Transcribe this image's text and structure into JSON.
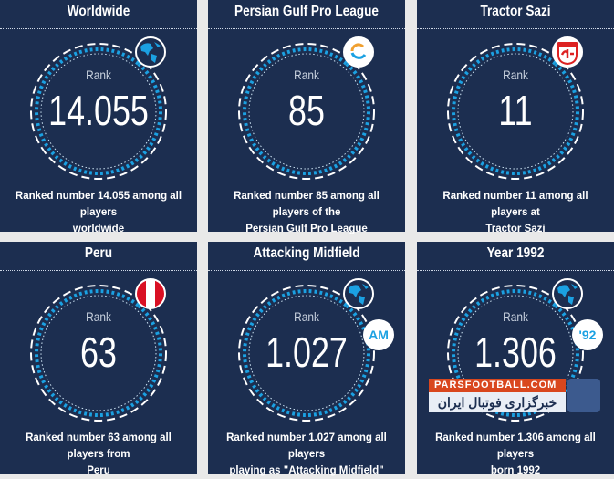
{
  "colors": {
    "card": "#1c2e50",
    "accent": "#1ba1e2",
    "background": "#e9e9e9"
  },
  "cards": [
    {
      "title": "Worldwide",
      "rank_label": "Rank",
      "value": "14.055",
      "desc1": "Ranked number 14.055 among all players",
      "desc2": "worldwide",
      "icon": "globe-icon"
    },
    {
      "title": "Persian Gulf Pro League",
      "rank_label": "Rank",
      "value": "85",
      "desc1": "Ranked number 85 among all players of the",
      "desc2": "Persian Gulf Pro League",
      "icon": "league-logo-icon"
    },
    {
      "title": "Tractor Sazi",
      "rank_label": "Rank",
      "value": "11",
      "desc1": "Ranked number 11 among all players at",
      "desc2": "Tractor Sazi",
      "icon": "club-logo-icon"
    },
    {
      "title": "Peru",
      "rank_label": "Rank",
      "value": "63",
      "desc1": "Ranked number 63 among all players from",
      "desc2": "Peru",
      "icon": "peru-flag-icon"
    },
    {
      "title": "Attacking Midfield",
      "rank_label": "Rank",
      "value": "1.027",
      "desc1": "Ranked number 1.027 among all players",
      "desc2": "playing as \"Attacking Midfield\"",
      "icon": "globe-icon",
      "tag": "AM"
    },
    {
      "title": "Year 1992",
      "rank_label": "Rank",
      "value": "1.306",
      "desc1": "Ranked number 1.306 among all players",
      "desc2": "born 1992",
      "icon": "globe-icon",
      "tag": "'92"
    }
  ],
  "watermark": {
    "site": "PARSFOOTBALL.COM",
    "tagline": "خبرگزاری فوتبال ایران"
  }
}
